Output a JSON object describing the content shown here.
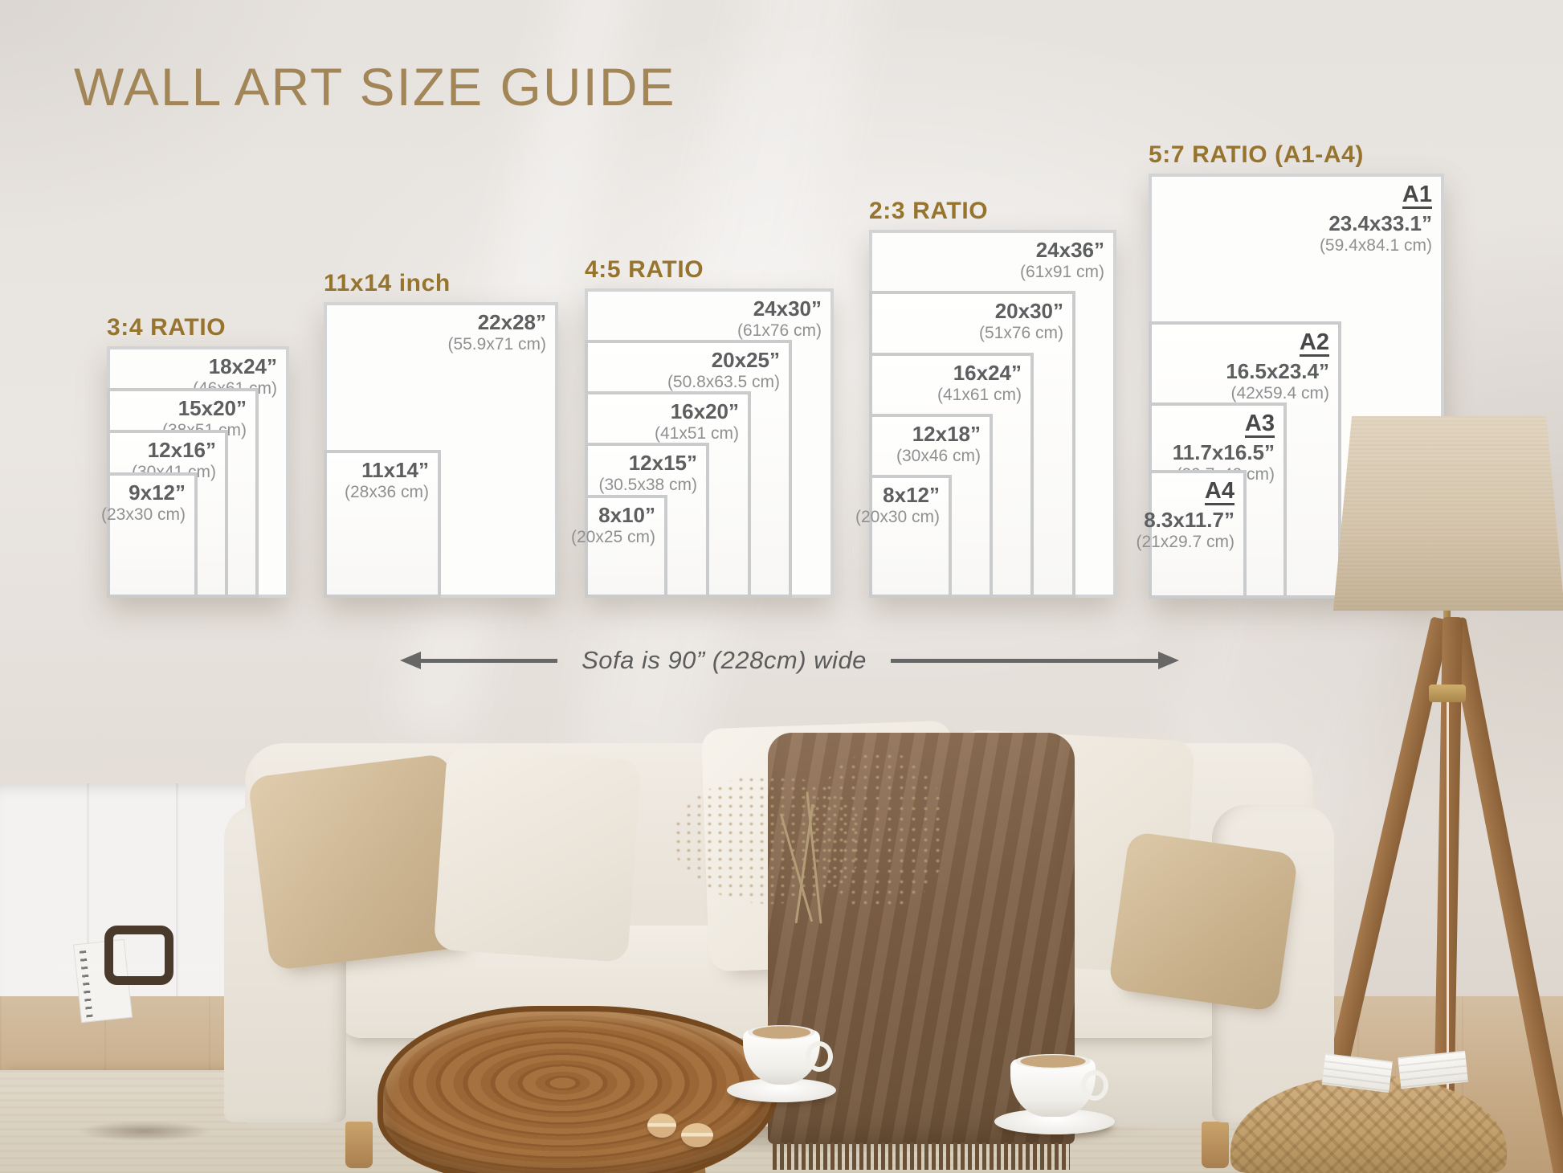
{
  "title": "WALL ART SIZE GUIDE",
  "sofa_note": "Sofa is 90” (228cm) wide",
  "colors": {
    "title": "#a28658",
    "ratio_header": "#97752f",
    "size_text": "#5d5e60",
    "cm_text": "#8f9092",
    "note_text": "#5c5c5c"
  },
  "groups": [
    {
      "label": "3:4 RATIO",
      "sizes": [
        {
          "inches": "18x24”",
          "cm": "(46x61 cm)"
        },
        {
          "inches": "15x20”",
          "cm": "(38x51 cm)"
        },
        {
          "inches": "12x16”",
          "cm": "(30x41 cm)"
        },
        {
          "inches": "9x12”",
          "cm": "(23x30 cm)"
        }
      ]
    },
    {
      "label": "11x14 inch",
      "sizes": [
        {
          "inches": "22x28”",
          "cm": "(55.9x71 cm)"
        },
        {
          "inches": "11x14”",
          "cm": "(28x36 cm)"
        }
      ]
    },
    {
      "label": "4:5 RATIO",
      "sizes": [
        {
          "inches": "24x30”",
          "cm": "(61x76 cm)"
        },
        {
          "inches": "20x25”",
          "cm": "(50.8x63.5 cm)"
        },
        {
          "inches": "16x20”",
          "cm": "(41x51 cm)"
        },
        {
          "inches": "12x15”",
          "cm": "(30.5x38 cm)"
        },
        {
          "inches": "8x10”",
          "cm": "(20x25 cm)"
        }
      ]
    },
    {
      "label": "2:3 RATIO",
      "sizes": [
        {
          "inches": "24x36”",
          "cm": "(61x91 cm)"
        },
        {
          "inches": "20x30”",
          "cm": "(51x76 cm)"
        },
        {
          "inches": "16x24”",
          "cm": "(41x61 cm)"
        },
        {
          "inches": "12x18”",
          "cm": "(30x46 cm)"
        },
        {
          "inches": "8x12”",
          "cm": "(20x30 cm)"
        }
      ]
    },
    {
      "label": "5:7 RATIO (A1-A4)",
      "sizes": [
        {
          "name": "A1",
          "inches": "23.4x33.1”",
          "cm": "(59.4x84.1 cm)"
        },
        {
          "name": "A2",
          "inches": "16.5x23.4”",
          "cm": "(42x59.4 cm)"
        },
        {
          "name": "A3",
          "inches": "11.7x16.5”",
          "cm": "(29.7x42 cm)"
        },
        {
          "name": "A4",
          "inches": "8.3x11.7”",
          "cm": "(21x29.7 cm)"
        }
      ]
    }
  ]
}
